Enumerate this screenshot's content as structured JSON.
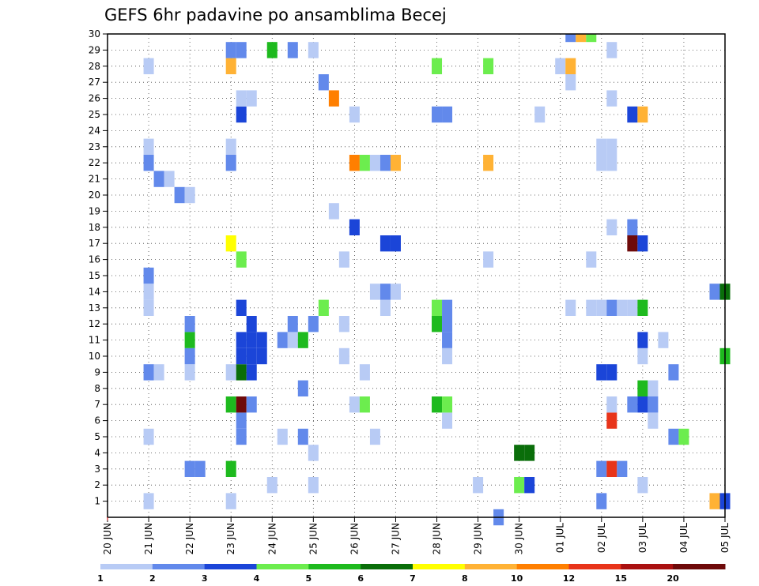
{
  "chart_data": {
    "type": "heatmap",
    "title": "GEFS 6hr padavine po ansamblima Becej",
    "x_ticks": [
      "20 JUN",
      "21 JUN",
      "22 JUN",
      "23 JUN",
      "24 JUN",
      "25 JUN",
      "26 JUN",
      "27 JUN",
      "28 JUN",
      "29 JUN",
      "30 JUN",
      "01 JUL",
      "02 JUL",
      "03 JUL",
      "04 JUL",
      "05 JUL"
    ],
    "y_ticks": [
      "1",
      "2",
      "3",
      "4",
      "5",
      "6",
      "7",
      "8",
      "9",
      "10",
      "11",
      "12",
      "13",
      "14",
      "15",
      "16",
      "17",
      "18",
      "19",
      "20",
      "21",
      "22",
      "23",
      "24",
      "25",
      "26",
      "27",
      "28",
      "29",
      "30"
    ],
    "xlim": [
      0,
      60
    ],
    "ylim": [
      0,
      30
    ],
    "grid": true,
    "colorbar": {
      "labels": [
        "1",
        "2",
        "3",
        "4",
        "5",
        "6",
        "7",
        "8",
        "10",
        "12",
        "15",
        "20"
      ],
      "colors": [
        "#b8cbf5",
        "#6289eb",
        "#1b45d8",
        "#6ced4e",
        "#1eba1e",
        "#0a6e0a",
        "#ffff00",
        "#ffb235",
        "#ff7f00",
        "#e8341a",
        "#aa1010",
        "#6e0a0a"
      ]
    },
    "cells": [
      {
        "x": 4,
        "y": 1,
        "v": 1
      },
      {
        "x": 12,
        "y": 1,
        "v": 1
      },
      {
        "x": 48,
        "y": 1,
        "v": 2
      },
      {
        "x": 59,
        "y": 1,
        "v": 8
      },
      {
        "x": 60,
        "y": 1,
        "v": 3
      },
      {
        "x": 16,
        "y": 2,
        "v": 1
      },
      {
        "x": 20,
        "y": 2,
        "v": 1
      },
      {
        "x": 36,
        "y": 2,
        "v": 1
      },
      {
        "x": 40,
        "y": 2,
        "v": 4
      },
      {
        "x": 41,
        "y": 2,
        "v": 3
      },
      {
        "x": 52,
        "y": 2,
        "v": 1
      },
      {
        "x": 8,
        "y": 3,
        "v": 2
      },
      {
        "x": 9,
        "y": 3,
        "v": 2
      },
      {
        "x": 12,
        "y": 3,
        "v": 5
      },
      {
        "x": 48,
        "y": 3,
        "v": 2
      },
      {
        "x": 49,
        "y": 3,
        "v": 12
      },
      {
        "x": 50,
        "y": 3,
        "v": 2
      },
      {
        "x": 20,
        "y": 4,
        "v": 1
      },
      {
        "x": 40,
        "y": 4,
        "v": 6
      },
      {
        "x": 41,
        "y": 4,
        "v": 6
      },
      {
        "x": 4,
        "y": 5,
        "v": 1
      },
      {
        "x": 13,
        "y": 5,
        "v": 2
      },
      {
        "x": 17,
        "y": 5,
        "v": 1
      },
      {
        "x": 19,
        "y": 5,
        "v": 2
      },
      {
        "x": 26,
        "y": 5,
        "v": 1
      },
      {
        "x": 55,
        "y": 5,
        "v": 2
      },
      {
        "x": 56,
        "y": 5,
        "v": 4
      },
      {
        "x": 13,
        "y": 6,
        "v": 2
      },
      {
        "x": 33,
        "y": 6,
        "v": 1
      },
      {
        "x": 49,
        "y": 6,
        "v": 12
      },
      {
        "x": 53,
        "y": 6,
        "v": 1
      },
      {
        "x": 12,
        "y": 7,
        "v": 5
      },
      {
        "x": 13,
        "y": 7,
        "v": 20
      },
      {
        "x": 14,
        "y": 7,
        "v": 2
      },
      {
        "x": 24,
        "y": 7,
        "v": 1
      },
      {
        "x": 25,
        "y": 7,
        "v": 4
      },
      {
        "x": 32,
        "y": 7,
        "v": 5
      },
      {
        "x": 33,
        "y": 7,
        "v": 4
      },
      {
        "x": 49,
        "y": 7,
        "v": 1
      },
      {
        "x": 51,
        "y": 7,
        "v": 2
      },
      {
        "x": 52,
        "y": 7,
        "v": 3
      },
      {
        "x": 53,
        "y": 7,
        "v": 2
      },
      {
        "x": 19,
        "y": 8,
        "v": 2
      },
      {
        "x": 52,
        "y": 8,
        "v": 5
      },
      {
        "x": 53,
        "y": 8,
        "v": 1
      },
      {
        "x": 4,
        "y": 9,
        "v": 2
      },
      {
        "x": 5,
        "y": 9,
        "v": 1
      },
      {
        "x": 8,
        "y": 9,
        "v": 1
      },
      {
        "x": 12,
        "y": 9,
        "v": 1
      },
      {
        "x": 13,
        "y": 9,
        "v": 6
      },
      {
        "x": 14,
        "y": 9,
        "v": 3
      },
      {
        "x": 25,
        "y": 9,
        "v": 1
      },
      {
        "x": 48,
        "y": 9,
        "v": 3
      },
      {
        "x": 49,
        "y": 9,
        "v": 3
      },
      {
        "x": 55,
        "y": 9,
        "v": 2
      },
      {
        "x": 8,
        "y": 10,
        "v": 2
      },
      {
        "x": 13,
        "y": 10,
        "v": 3
      },
      {
        "x": 14,
        "y": 10,
        "v": 3
      },
      {
        "x": 15,
        "y": 10,
        "v": 3
      },
      {
        "x": 23,
        "y": 10,
        "v": 1
      },
      {
        "x": 33,
        "y": 10,
        "v": 1
      },
      {
        "x": 52,
        "y": 10,
        "v": 1
      },
      {
        "x": 60,
        "y": 10,
        "v": 5
      },
      {
        "x": 8,
        "y": 11,
        "v": 5
      },
      {
        "x": 13,
        "y": 11,
        "v": 3
      },
      {
        "x": 14,
        "y": 11,
        "v": 3
      },
      {
        "x": 15,
        "y": 11,
        "v": 3
      },
      {
        "x": 17,
        "y": 11,
        "v": 2
      },
      {
        "x": 18,
        "y": 11,
        "v": 1
      },
      {
        "x": 19,
        "y": 11,
        "v": 5
      },
      {
        "x": 33,
        "y": 11,
        "v": 2
      },
      {
        "x": 52,
        "y": 11,
        "v": 3
      },
      {
        "x": 54,
        "y": 11,
        "v": 1
      },
      {
        "x": 8,
        "y": 12,
        "v": 2
      },
      {
        "x": 14,
        "y": 12,
        "v": 3
      },
      {
        "x": 18,
        "y": 12,
        "v": 2
      },
      {
        "x": 20,
        "y": 12,
        "v": 2
      },
      {
        "x": 23,
        "y": 12,
        "v": 1
      },
      {
        "x": 32,
        "y": 12,
        "v": 5
      },
      {
        "x": 33,
        "y": 12,
        "v": 2
      },
      {
        "x": 4,
        "y": 13,
        "v": 1
      },
      {
        "x": 13,
        "y": 13,
        "v": 3
      },
      {
        "x": 21,
        "y": 13,
        "v": 4
      },
      {
        "x": 27,
        "y": 13,
        "v": 1
      },
      {
        "x": 32,
        "y": 13,
        "v": 4
      },
      {
        "x": 33,
        "y": 13,
        "v": 2
      },
      {
        "x": 45,
        "y": 13,
        "v": 1
      },
      {
        "x": 47,
        "y": 13,
        "v": 1
      },
      {
        "x": 48,
        "y": 13,
        "v": 1
      },
      {
        "x": 49,
        "y": 13,
        "v": 2
      },
      {
        "x": 50,
        "y": 13,
        "v": 1
      },
      {
        "x": 51,
        "y": 13,
        "v": 1
      },
      {
        "x": 52,
        "y": 13,
        "v": 5
      },
      {
        "x": 4,
        "y": 14,
        "v": 1
      },
      {
        "x": 26,
        "y": 14,
        "v": 1
      },
      {
        "x": 27,
        "y": 14,
        "v": 2
      },
      {
        "x": 28,
        "y": 14,
        "v": 1
      },
      {
        "x": 59,
        "y": 14,
        "v": 2
      },
      {
        "x": 60,
        "y": 14,
        "v": 6
      },
      {
        "x": 4,
        "y": 15,
        "v": 2
      },
      {
        "x": 13,
        "y": 16,
        "v": 4
      },
      {
        "x": 23,
        "y": 16,
        "v": 1
      },
      {
        "x": 37,
        "y": 16,
        "v": 1
      },
      {
        "x": 47,
        "y": 16,
        "v": 1
      },
      {
        "x": 12,
        "y": 17,
        "v": 7
      },
      {
        "x": 27,
        "y": 17,
        "v": 3
      },
      {
        "x": 28,
        "y": 17,
        "v": 3
      },
      {
        "x": 51,
        "y": 17,
        "v": 20
      },
      {
        "x": 52,
        "y": 17,
        "v": 3
      },
      {
        "x": 24,
        "y": 18,
        "v": 3
      },
      {
        "x": 49,
        "y": 18,
        "v": 1
      },
      {
        "x": 51,
        "y": 18,
        "v": 2
      },
      {
        "x": 22,
        "y": 19,
        "v": 1
      },
      {
        "x": 7,
        "y": 20,
        "v": 2
      },
      {
        "x": 8,
        "y": 20,
        "v": 1
      },
      {
        "x": 5,
        "y": 21,
        "v": 2
      },
      {
        "x": 6,
        "y": 21,
        "v": 1
      },
      {
        "x": 4,
        "y": 22,
        "v": 2
      },
      {
        "x": 12,
        "y": 22,
        "v": 2
      },
      {
        "x": 24,
        "y": 22,
        "v": 10
      },
      {
        "x": 25,
        "y": 22,
        "v": 4
      },
      {
        "x": 26,
        "y": 22,
        "v": 1
      },
      {
        "x": 27,
        "y": 22,
        "v": 2
      },
      {
        "x": 28,
        "y": 22,
        "v": 8
      },
      {
        "x": 37,
        "y": 22,
        "v": 8
      },
      {
        "x": 48,
        "y": 22,
        "v": 1
      },
      {
        "x": 49,
        "y": 22,
        "v": 1
      },
      {
        "x": 4,
        "y": 23,
        "v": 1
      },
      {
        "x": 12,
        "y": 23,
        "v": 1
      },
      {
        "x": 48,
        "y": 23,
        "v": 1
      },
      {
        "x": 49,
        "y": 23,
        "v": 1
      },
      {
        "x": 13,
        "y": 25,
        "v": 3
      },
      {
        "x": 24,
        "y": 25,
        "v": 1
      },
      {
        "x": 32,
        "y": 25,
        "v": 2
      },
      {
        "x": 33,
        "y": 25,
        "v": 2
      },
      {
        "x": 42,
        "y": 25,
        "v": 1
      },
      {
        "x": 51,
        "y": 25,
        "v": 3
      },
      {
        "x": 52,
        "y": 25,
        "v": 8
      },
      {
        "x": 13,
        "y": 26,
        "v": 1
      },
      {
        "x": 14,
        "y": 26,
        "v": 1
      },
      {
        "x": 22,
        "y": 26,
        "v": 10
      },
      {
        "x": 49,
        "y": 26,
        "v": 1
      },
      {
        "x": 21,
        "y": 27,
        "v": 2
      },
      {
        "x": 45,
        "y": 27,
        "v": 1
      },
      {
        "x": 4,
        "y": 28,
        "v": 1
      },
      {
        "x": 12,
        "y": 28,
        "v": 8
      },
      {
        "x": 32,
        "y": 28,
        "v": 4
      },
      {
        "x": 37,
        "y": 28,
        "v": 4
      },
      {
        "x": 44,
        "y": 28,
        "v": 1
      },
      {
        "x": 45,
        "y": 28,
        "v": 8
      },
      {
        "x": 12,
        "y": 29,
        "v": 2
      },
      {
        "x": 13,
        "y": 29,
        "v": 2
      },
      {
        "x": 16,
        "y": 29,
        "v": 5
      },
      {
        "x": 18,
        "y": 29,
        "v": 2
      },
      {
        "x": 20,
        "y": 29,
        "v": 1
      },
      {
        "x": 49,
        "y": 29,
        "v": 1
      },
      {
        "x": 45,
        "y": 30,
        "v": 2
      },
      {
        "x": 46,
        "y": 30,
        "v": 8
      },
      {
        "x": 47,
        "y": 30,
        "v": 4
      },
      {
        "x": 38,
        "y": 0,
        "v": 2
      }
    ]
  }
}
